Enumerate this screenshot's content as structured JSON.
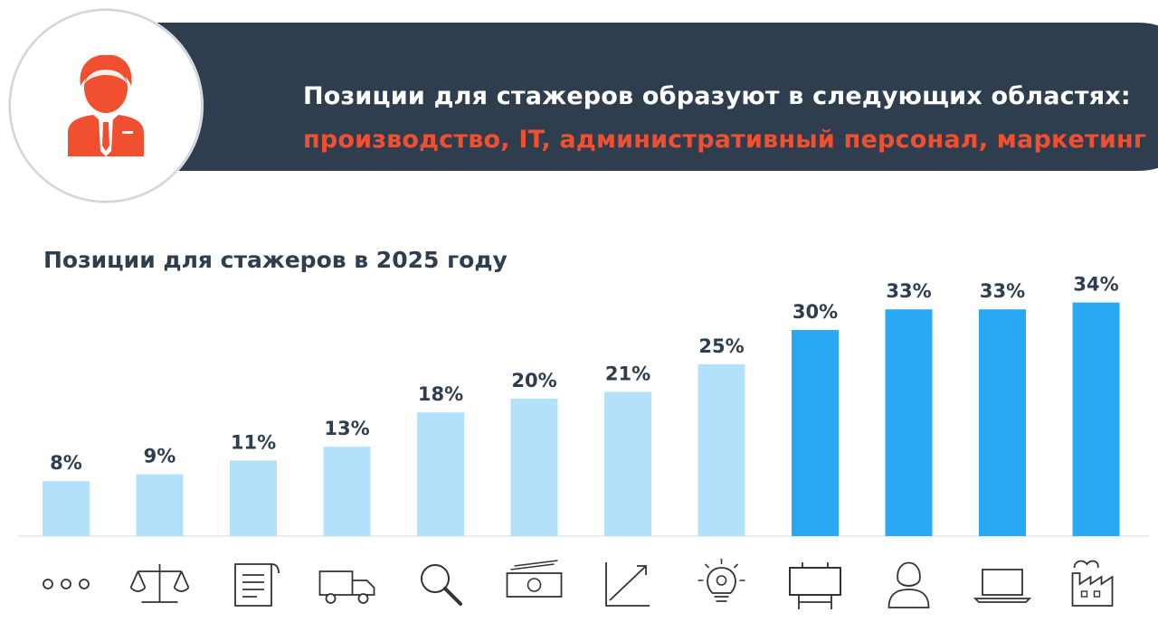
{
  "banner": {
    "line1": "Позиции для стажеров образуют в следующих областях:",
    "line2": "производство, IT, административный персонал, маркетинг",
    "accent_color": "#f0502f",
    "background_color": "#2f3e4e",
    "icon": "businessman-icon"
  },
  "chart_data": {
    "type": "bar",
    "title": "Позиции для стажеров в 2025 году",
    "values": [
      8,
      9,
      11,
      13,
      18,
      20,
      21,
      25,
      30,
      33,
      33,
      34
    ],
    "value_labels": [
      "8%",
      "9%",
      "11%",
      "13%",
      "18%",
      "20%",
      "21%",
      "25%",
      "30%",
      "33%",
      "33%",
      "34%"
    ],
    "icons": [
      "ellipsis-icon",
      "scales-icon",
      "document-icon",
      "truck-icon",
      "magnifier-icon",
      "money-icon",
      "growth-chart-icon",
      "lightbulb-icon",
      "billboard-icon",
      "woman-icon",
      "laptop-icon",
      "factory-icon"
    ],
    "highlight_count": 4,
    "colors": {
      "normal": "#b3e0fb",
      "highlight": "#29a8f4",
      "baseline": "#d6dadd"
    },
    "ylim": [
      0,
      34
    ]
  }
}
